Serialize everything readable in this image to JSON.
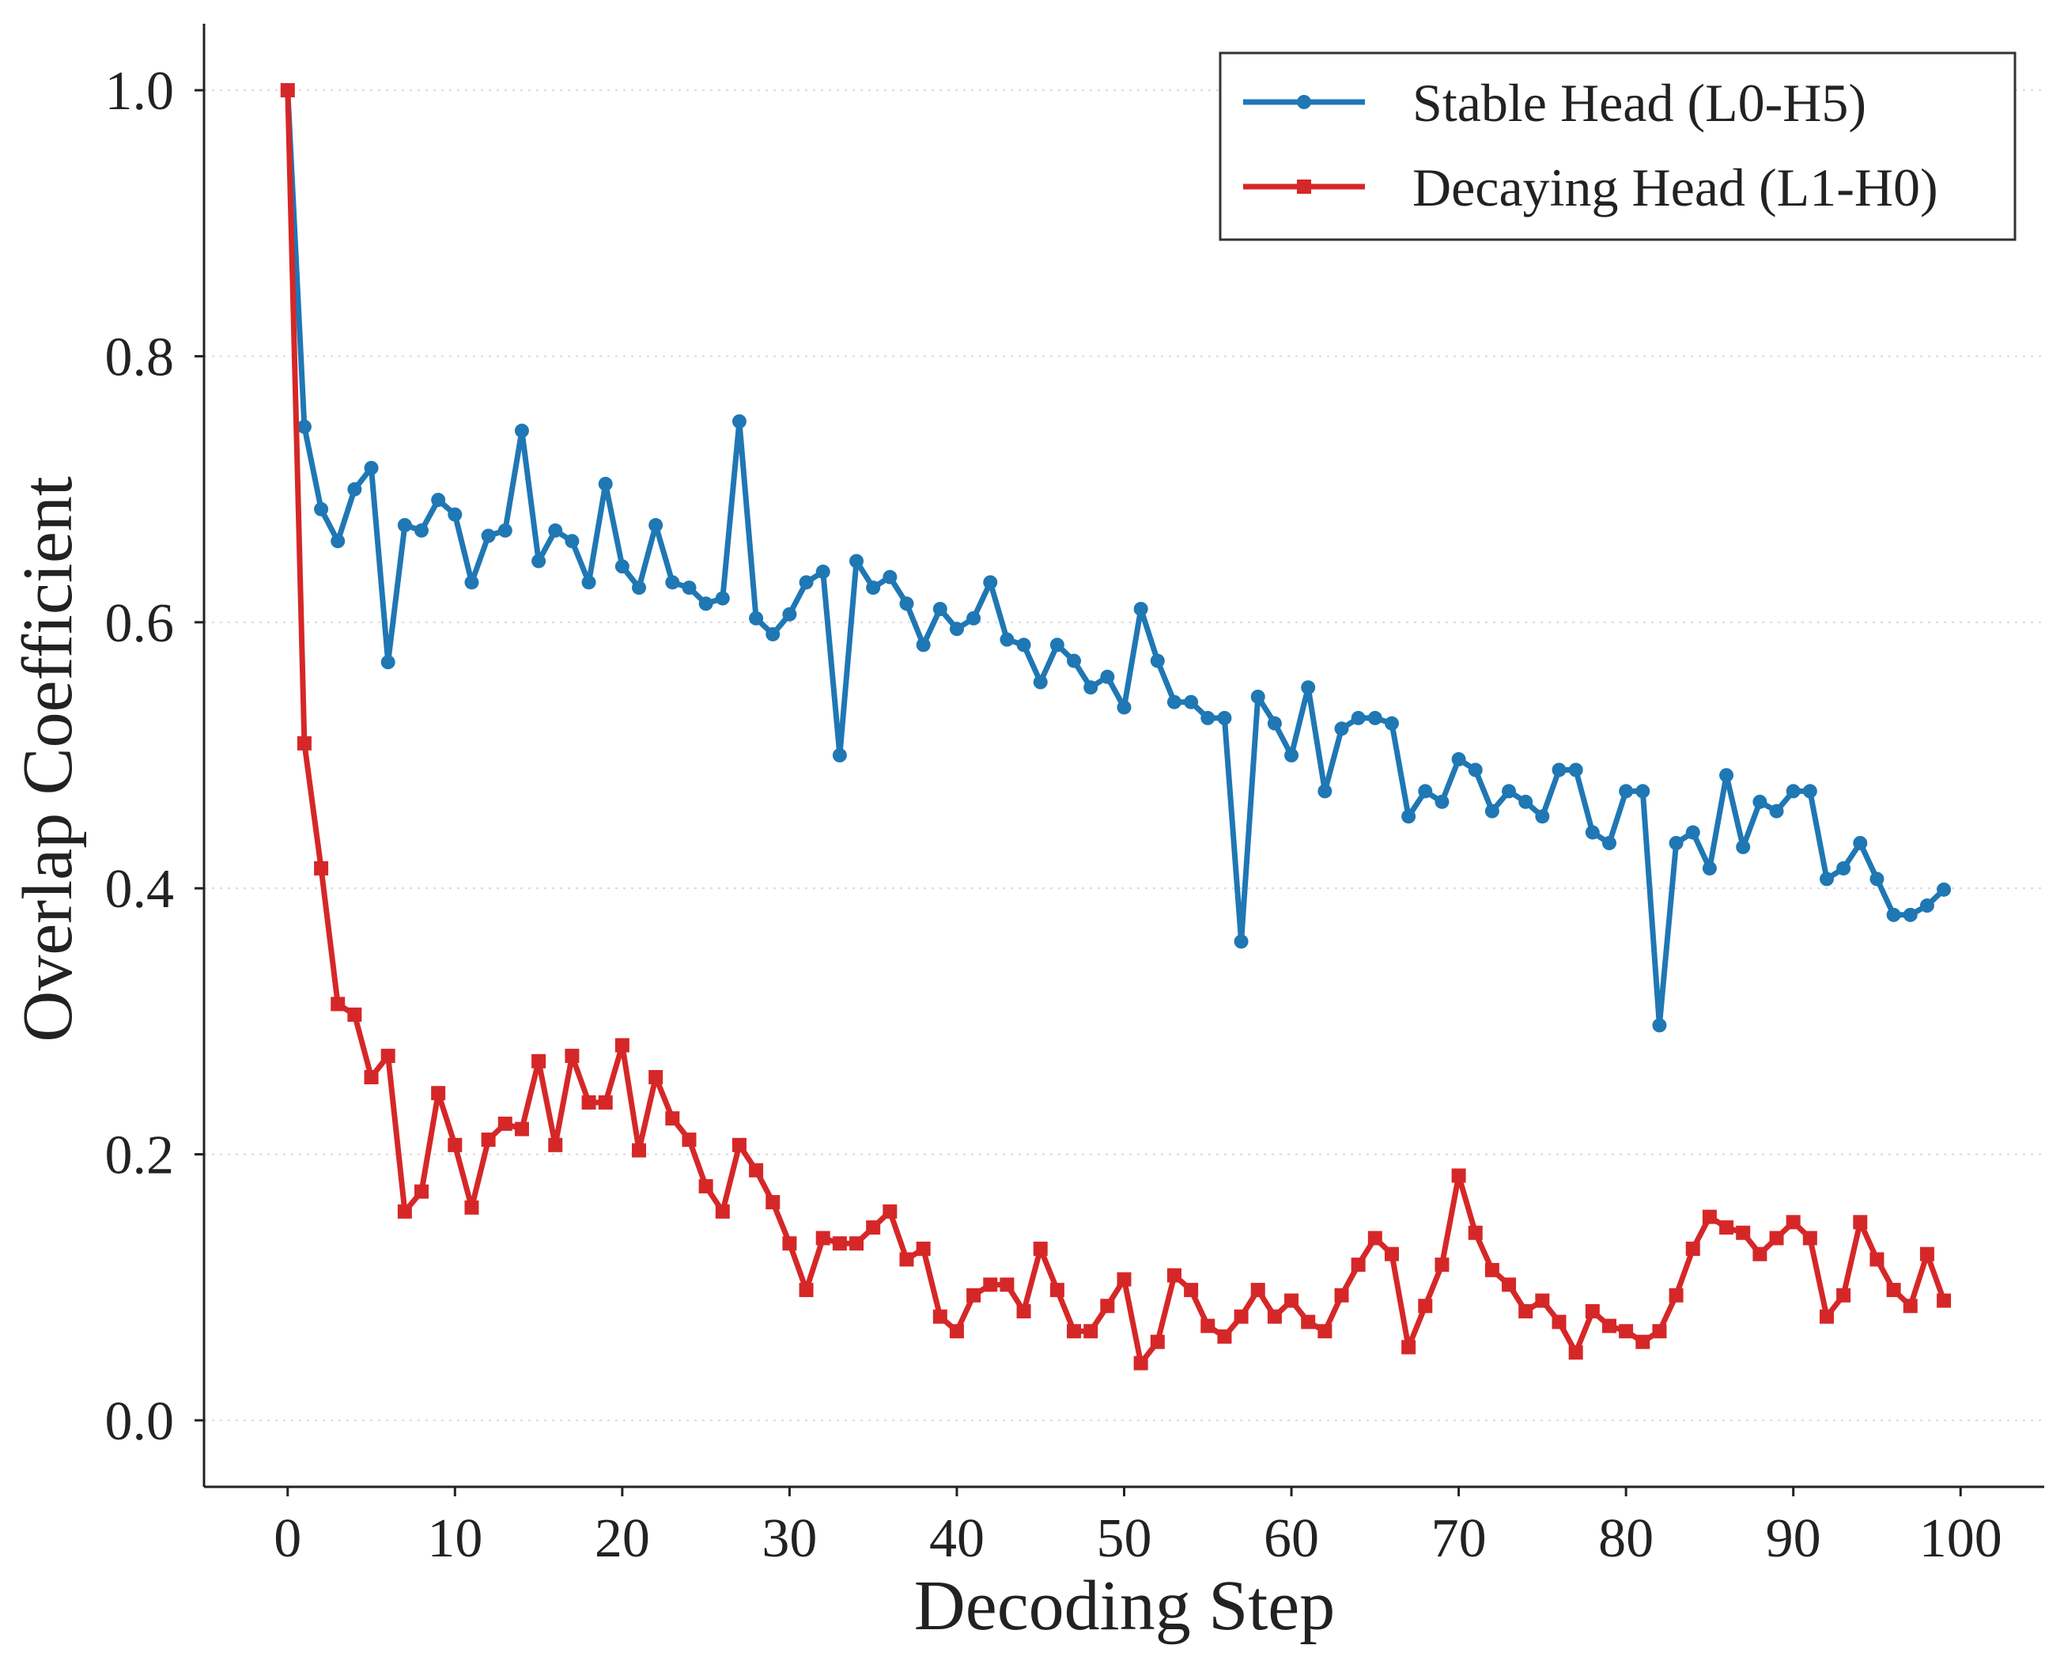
{
  "chart_data": {
    "type": "line",
    "title": "",
    "xlabel": "Decoding Step",
    "ylabel": "Overlap Coefficient",
    "xlim": [
      -5,
      105
    ],
    "ylim": [
      -0.05,
      1.05
    ],
    "xticks": [
      0,
      10,
      20,
      30,
      40,
      50,
      60,
      70,
      80,
      90,
      100
    ],
    "yticks": [
      0.0,
      0.2,
      0.4,
      0.6,
      0.8,
      1.0
    ],
    "xtick_labels": [
      "0",
      "10",
      "20",
      "30",
      "40",
      "50",
      "60",
      "70",
      "80",
      "90",
      "100"
    ],
    "ytick_labels": [
      "0.0",
      "0.2",
      "0.4",
      "0.6",
      "0.8",
      "1.0"
    ],
    "grid": "horizontal dotted",
    "legend_position": "top-right",
    "x": [
      0,
      1,
      2,
      3,
      4,
      5,
      6,
      7,
      8,
      9,
      10,
      11,
      12,
      13,
      14,
      15,
      16,
      17,
      18,
      19,
      20,
      21,
      22,
      23,
      24,
      25,
      26,
      27,
      28,
      29,
      30,
      31,
      32,
      33,
      34,
      35,
      36,
      37,
      38,
      39,
      40,
      41,
      42,
      43,
      44,
      45,
      46,
      47,
      48,
      49,
      50,
      51,
      52,
      53,
      54,
      55,
      56,
      57,
      58,
      59,
      60,
      61,
      62,
      63,
      64,
      65,
      66,
      67,
      68,
      69,
      70,
      71,
      72,
      73,
      74,
      75,
      76,
      77,
      78,
      79,
      80,
      81,
      82,
      83,
      84,
      85,
      86,
      87,
      88,
      89,
      90,
      91,
      92,
      93,
      94,
      95,
      96,
      97,
      98,
      99
    ],
    "series": [
      {
        "name": "Stable Head (L0-H5)",
        "color": "#1f77b4",
        "marker": "circle",
        "values": [
          1.0,
          0.747,
          0.685,
          0.661,
          0.7,
          0.716,
          0.57,
          0.673,
          0.669,
          0.692,
          0.681,
          0.63,
          0.665,
          0.669,
          0.744,
          0.646,
          0.669,
          0.661,
          0.63,
          0.704,
          0.642,
          0.626,
          0.673,
          0.63,
          0.626,
          0.614,
          0.618,
          0.751,
          0.603,
          0.591,
          0.606,
          0.63,
          0.638,
          0.5,
          0.646,
          0.626,
          0.634,
          0.614,
          0.583,
          0.61,
          0.595,
          0.603,
          0.63,
          0.587,
          0.583,
          0.555,
          0.583,
          0.571,
          0.551,
          0.559,
          0.536,
          0.61,
          0.571,
          0.54,
          0.54,
          0.528,
          0.528,
          0.36,
          0.544,
          0.524,
          0.5,
          0.551,
          0.473,
          0.52,
          0.528,
          0.528,
          0.524,
          0.454,
          0.473,
          0.465,
          0.497,
          0.489,
          0.458,
          0.473,
          0.465,
          0.454,
          0.489,
          0.489,
          0.442,
          0.434,
          0.473,
          0.473,
          0.297,
          0.434,
          0.442,
          0.415,
          0.485,
          0.431,
          0.465,
          0.458,
          0.473,
          0.473,
          0.407,
          0.415,
          0.434,
          0.407,
          0.38,
          0.38,
          0.387,
          0.399
        ]
      },
      {
        "name": "Decaying Head (L1-H0)",
        "color": "#d62728",
        "marker": "square",
        "values": [
          1.0,
          0.509,
          0.415,
          0.313,
          0.305,
          0.258,
          0.274,
          0.157,
          0.172,
          0.246,
          0.207,
          0.16,
          0.211,
          0.223,
          0.219,
          0.27,
          0.207,
          0.274,
          0.239,
          0.239,
          0.282,
          0.203,
          0.258,
          0.227,
          0.211,
          0.176,
          0.157,
          0.207,
          0.188,
          0.164,
          0.133,
          0.098,
          0.137,
          0.133,
          0.133,
          0.145,
          0.157,
          0.121,
          0.129,
          0.078,
          0.067,
          0.094,
          0.102,
          0.102,
          0.082,
          0.129,
          0.098,
          0.067,
          0.067,
          0.086,
          0.106,
          0.043,
          0.059,
          0.109,
          0.098,
          0.071,
          0.063,
          0.078,
          0.098,
          0.078,
          0.09,
          0.074,
          0.067,
          0.094,
          0.117,
          0.137,
          0.125,
          0.055,
          0.086,
          0.117,
          0.184,
          0.141,
          0.113,
          0.102,
          0.082,
          0.09,
          0.074,
          0.051,
          0.082,
          0.071,
          0.067,
          0.059,
          0.067,
          0.094,
          0.129,
          0.153,
          0.145,
          0.141,
          0.125,
          0.137,
          0.149,
          0.137,
          0.078,
          0.094,
          0.149,
          0.121,
          0.098,
          0.086,
          0.125,
          0.09
        ]
      }
    ]
  }
}
